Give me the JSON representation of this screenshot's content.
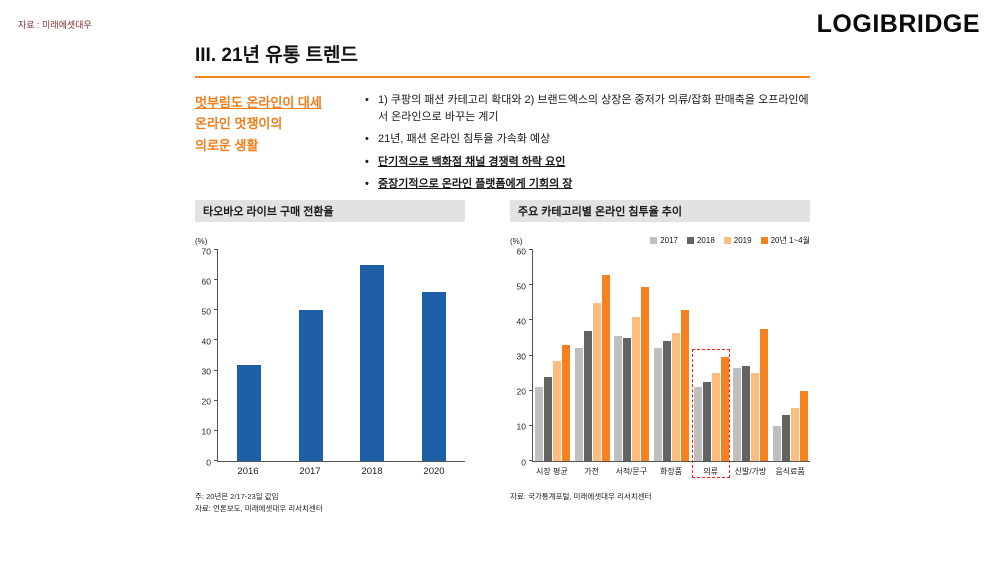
{
  "page": {
    "source_note": "자료 : 미래에셋대우",
    "logo": "LOGIBRIDGE",
    "title": "III. 21년 유통 트렌드"
  },
  "headline": {
    "line1": "멋부림도 온라인이 대세",
    "line2": "온라인 멋쟁이의",
    "line3": "의로운 생활"
  },
  "bullets": [
    {
      "text": "1) 쿠팡의 패션 카테고리 확대와 2) 브랜드엑스의 상장은 중저가 의류/잡화 판매축을 오프라인에서 온라인으로 바꾸는 계기"
    },
    {
      "text": "21년, 패션 온라인 침투율 가속화 예상"
    },
    {
      "text": "단기적으로 백화점 채널 경쟁력 하락 요인"
    },
    {
      "text": "중장기적으로 온라인 플랫폼에게 기회의 장"
    }
  ],
  "chart_data": [
    {
      "type": "bar",
      "title": "타오바오 라이브 구매 전환율",
      "unit_label": "(%)",
      "categories": [
        "2016",
        "2017",
        "2018",
        "2020"
      ],
      "values": [
        32,
        50,
        65,
        56
      ],
      "ylim": [
        0,
        70
      ],
      "ytick_step": 10,
      "bar_color": "#1f5fa8",
      "legend_position": "none",
      "grid": false,
      "footnotes": [
        "주: 20년은 2/17-23일 값임",
        "자료: 언론보도, 미래에셋대우 리서치센터"
      ]
    },
    {
      "type": "bar",
      "title": "주요 카테고리별 온라인 침투율 추이",
      "unit_label": "(%)",
      "categories": [
        "시장 평균",
        "가전",
        "서적/문구",
        "화장품",
        "의류",
        "신발/가방",
        "음식료품"
      ],
      "series": [
        {
          "name": "2017",
          "color": "#bfbfbf",
          "values": [
            21,
            32,
            35.5,
            32,
            21,
            26.5,
            10
          ]
        },
        {
          "name": "2018",
          "color": "#636363",
          "values": [
            24,
            37,
            35,
            34,
            22.5,
            27,
            13
          ]
        },
        {
          "name": "2019",
          "color": "#fbbd80",
          "values": [
            28.5,
            45,
            41,
            36.5,
            25,
            25,
            15
          ]
        },
        {
          "name": "20년 1~4월",
          "color": "#f5821f",
          "values": [
            33,
            53,
            49.5,
            43,
            29.5,
            37.5,
            20
          ]
        }
      ],
      "ylim": [
        0,
        60
      ],
      "ytick_step": 10,
      "legend_position": "top-right",
      "grid": false,
      "highlight_category": "의류",
      "highlight_color": "#ff1a1a",
      "footnotes": [
        "자료: 국가통계포털, 미래에셋대우 리서치센터"
      ]
    }
  ]
}
